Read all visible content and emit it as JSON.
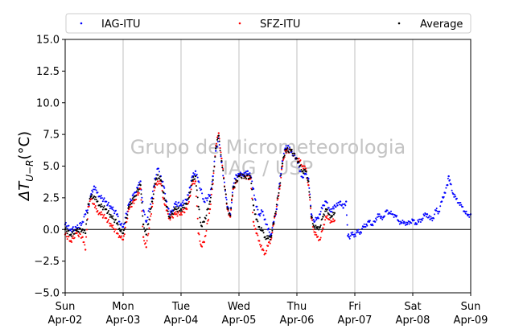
{
  "chart_data": {
    "type": "scatter",
    "ylabel": "ΔT_{U−R}(°C)",
    "ylabel_main": "ΔT",
    "ylabel_sub": "U−R",
    "ylabel_tail": "(°C)",
    "ylim": [
      -5,
      15
    ],
    "xlim": [
      0,
      7
    ],
    "y_ticks": [
      -5,
      -2.5,
      0,
      2.5,
      5,
      7.5,
      10,
      12.5,
      15
    ],
    "y_tick_labels": [
      "−5.0",
      "−2.5",
      "0.0",
      "2.5",
      "5.0",
      "7.5",
      "10.0",
      "12.5",
      "15.0"
    ],
    "x_ticks": [
      0,
      1,
      2,
      3,
      4,
      5,
      6,
      7
    ],
    "x_tick_labels": [
      [
        "Sun",
        "Apr-02"
      ],
      [
        "Mon",
        "Apr-03"
      ],
      [
        "Tue",
        "Apr-04"
      ],
      [
        "Wed",
        "Apr-05"
      ],
      [
        "Thu",
        "Apr-06"
      ],
      [
        "Fri",
        "Apr-07"
      ],
      [
        "Sat",
        "Apr-08"
      ],
      [
        "Sun",
        "Apr-09"
      ]
    ],
    "grid": "vertical",
    "legend_placement": "top, above plot",
    "reference_line_y": 0,
    "watermark": [
      "Grupo de Micrometeorologia",
      "IAG / USP"
    ],
    "series": [
      {
        "name": "IAG-ITU",
        "color": "#0000ff",
        "points": [
          [
            0.0,
            0.4
          ],
          [
            0.1,
            0.0
          ],
          [
            0.2,
            0.1
          ],
          [
            0.3,
            0.6
          ],
          [
            0.35,
            1.2
          ],
          [
            0.4,
            1.8
          ],
          [
            0.45,
            2.8
          ],
          [
            0.5,
            3.4
          ],
          [
            0.55,
            2.9
          ],
          [
            0.6,
            2.6
          ],
          [
            0.7,
            2.2
          ],
          [
            0.8,
            1.7
          ],
          [
            0.9,
            1.2
          ],
          [
            0.95,
            0.4
          ],
          [
            1.0,
            0.2
          ],
          [
            1.1,
            2.0
          ],
          [
            1.2,
            2.9
          ],
          [
            1.25,
            3.3
          ],
          [
            1.3,
            3.8
          ],
          [
            1.35,
            1.5
          ],
          [
            1.4,
            0.6
          ],
          [
            1.5,
            2.5
          ],
          [
            1.55,
            4.0
          ],
          [
            1.6,
            4.8
          ],
          [
            1.65,
            4.2
          ],
          [
            1.7,
            3.4
          ],
          [
            1.75,
            2.2
          ],
          [
            1.8,
            1.2
          ],
          [
            1.85,
            1.5
          ],
          [
            1.9,
            2.0
          ],
          [
            2.0,
            2.0
          ],
          [
            2.1,
            2.3
          ],
          [
            2.15,
            3.3
          ],
          [
            2.2,
            4.2
          ],
          [
            2.25,
            4.6
          ],
          [
            2.3,
            3.8
          ],
          [
            2.4,
            2.2
          ],
          [
            2.5,
            2.7
          ],
          [
            2.55,
            4.2
          ],
          [
            2.6,
            6.2
          ],
          [
            2.65,
            7.2
          ],
          [
            2.7,
            5.3
          ],
          [
            2.8,
            1.8
          ],
          [
            2.85,
            1.2
          ],
          [
            2.9,
            3.4
          ],
          [
            2.95,
            4.3
          ],
          [
            3.0,
            4.3
          ],
          [
            3.05,
            4.4
          ],
          [
            3.1,
            4.3
          ],
          [
            3.15,
            4.6
          ],
          [
            3.2,
            4.2
          ],
          [
            3.25,
            3.2
          ],
          [
            3.3,
            1.8
          ],
          [
            3.35,
            1.2
          ],
          [
            3.4,
            1.4
          ],
          [
            3.45,
            0.8
          ],
          [
            3.5,
            0.0
          ],
          [
            3.55,
            -0.4
          ],
          [
            3.6,
            0.6
          ],
          [
            3.65,
            1.6
          ],
          [
            3.7,
            3.6
          ],
          [
            3.75,
            5.4
          ],
          [
            3.8,
            6.4
          ],
          [
            3.85,
            6.6
          ],
          [
            3.9,
            6.1
          ],
          [
            4.0,
            5.6
          ],
          [
            4.05,
            4.6
          ],
          [
            4.1,
            4.1
          ],
          [
            4.15,
            4.4
          ],
          [
            4.2,
            4.0
          ],
          [
            4.25,
            1.2
          ],
          [
            4.3,
            0.6
          ],
          [
            4.35,
            0.9
          ],
          [
            4.4,
            1.2
          ],
          [
            4.45,
            1.9
          ],
          [
            4.5,
            2.2
          ],
          [
            4.55,
            1.7
          ],
          [
            4.6,
            1.4
          ],
          [
            4.65,
            1.9
          ],
          [
            4.7,
            1.9
          ],
          [
            4.75,
            2.2
          ],
          [
            4.8,
            1.7
          ],
          [
            4.85,
            2.2
          ],
          [
            4.88,
            -0.5
          ],
          [
            4.9,
            -0.6
          ],
          [
            4.95,
            -0.4
          ],
          [
            5.0,
            -0.4
          ],
          [
            5.05,
            -0.2
          ],
          [
            5.1,
            -0.2
          ],
          [
            5.15,
            0.2
          ],
          [
            5.2,
            0.4
          ],
          [
            5.25,
            0.6
          ],
          [
            5.3,
            0.4
          ],
          [
            5.35,
            0.6
          ],
          [
            5.4,
            1.2
          ],
          [
            5.45,
            0.9
          ],
          [
            5.5,
            1.0
          ],
          [
            5.55,
            1.5
          ],
          [
            5.6,
            1.3
          ],
          [
            5.65,
            1.2
          ],
          [
            5.7,
            1.1
          ],
          [
            5.75,
            0.7
          ],
          [
            5.8,
            0.5
          ],
          [
            5.85,
            0.6
          ],
          [
            5.9,
            0.4
          ],
          [
            5.95,
            0.6
          ],
          [
            6.0,
            0.7
          ],
          [
            6.05,
            0.5
          ],
          [
            6.1,
            0.6
          ],
          [
            6.15,
            0.8
          ],
          [
            6.2,
            1.1
          ],
          [
            6.25,
            1.2
          ],
          [
            6.3,
            0.8
          ],
          [
            6.35,
            0.9
          ],
          [
            6.4,
            1.5
          ],
          [
            6.45,
            1.4
          ],
          [
            6.5,
            2.2
          ],
          [
            6.55,
            2.9
          ],
          [
            6.6,
            3.5
          ],
          [
            6.62,
            4.2
          ],
          [
            6.65,
            3.6
          ],
          [
            6.7,
            2.8
          ],
          [
            6.75,
            2.4
          ],
          [
            6.8,
            2.1
          ],
          [
            6.85,
            1.8
          ],
          [
            6.9,
            1.4
          ],
          [
            6.95,
            1.1
          ],
          [
            7.0,
            1.2
          ]
        ]
      },
      {
        "name": "SFZ-ITU",
        "color": "#ff0000",
        "points": [
          [
            0.0,
            -0.4
          ],
          [
            0.1,
            -0.9
          ],
          [
            0.2,
            -0.3
          ],
          [
            0.3,
            -0.6
          ],
          [
            0.35,
            -1.6
          ],
          [
            0.4,
            1.8
          ],
          [
            0.45,
            2.4
          ],
          [
            0.5,
            2.0
          ],
          [
            0.55,
            1.4
          ],
          [
            0.6,
            1.3
          ],
          [
            0.7,
            0.9
          ],
          [
            0.8,
            0.3
          ],
          [
            0.9,
            -0.3
          ],
          [
            0.95,
            -0.6
          ],
          [
            1.0,
            -0.8
          ],
          [
            1.1,
            1.6
          ],
          [
            1.2,
            2.3
          ],
          [
            1.3,
            3.2
          ],
          [
            1.35,
            -0.6
          ],
          [
            1.4,
            -1.4
          ],
          [
            1.5,
            1.8
          ],
          [
            1.55,
            3.3
          ],
          [
            1.6,
            3.8
          ],
          [
            1.65,
            3.6
          ],
          [
            1.7,
            2.4
          ],
          [
            1.75,
            1.5
          ],
          [
            1.8,
            0.9
          ],
          [
            1.9,
            1.2
          ],
          [
            2.0,
            1.3
          ],
          [
            2.1,
            1.6
          ],
          [
            2.15,
            2.6
          ],
          [
            2.2,
            3.6
          ],
          [
            2.25,
            3.8
          ],
          [
            2.3,
            -0.3
          ],
          [
            2.35,
            -1.3
          ],
          [
            2.4,
            -1.0
          ],
          [
            2.5,
            1.6
          ],
          [
            2.55,
            3.6
          ],
          [
            2.6,
            6.6
          ],
          [
            2.65,
            7.6
          ],
          [
            2.7,
            5.6
          ],
          [
            2.8,
            1.6
          ],
          [
            2.85,
            1.0
          ],
          [
            2.9,
            3.2
          ],
          [
            3.0,
            4.2
          ],
          [
            3.1,
            4.2
          ],
          [
            3.2,
            4.0
          ],
          [
            3.25,
            0.6
          ],
          [
            3.3,
            -0.3
          ],
          [
            3.35,
            -0.9
          ],
          [
            3.4,
            -1.6
          ],
          [
            3.45,
            -1.9
          ],
          [
            3.5,
            -1.3
          ],
          [
            3.55,
            -0.8
          ],
          [
            3.6,
            0.4
          ],
          [
            3.7,
            3.2
          ],
          [
            3.75,
            5.0
          ],
          [
            3.8,
            6.2
          ],
          [
            3.9,
            6.2
          ],
          [
            4.0,
            5.6
          ],
          [
            4.05,
            5.4
          ],
          [
            4.1,
            5.0
          ],
          [
            4.15,
            4.8
          ],
          [
            4.2,
            3.5
          ],
          [
            4.25,
            0.9
          ],
          [
            4.3,
            -0.2
          ],
          [
            4.35,
            -0.6
          ],
          [
            4.4,
            -0.8
          ],
          [
            4.45,
            0.1
          ],
          [
            4.5,
            1.0
          ],
          [
            4.55,
            0.8
          ],
          [
            4.6,
            0.6
          ],
          [
            4.65,
            0.7
          ]
        ]
      },
      {
        "name": "Average",
        "color": "#000000",
        "points": [
          [
            0.0,
            0.0
          ],
          [
            0.1,
            -0.4
          ],
          [
            0.2,
            -0.1
          ],
          [
            0.3,
            0.0
          ],
          [
            0.35,
            -0.3
          ],
          [
            0.4,
            2.0
          ],
          [
            0.45,
            2.6
          ],
          [
            0.5,
            2.6
          ],
          [
            0.55,
            2.2
          ],
          [
            0.6,
            1.9
          ],
          [
            0.7,
            1.6
          ],
          [
            0.8,
            1.0
          ],
          [
            0.9,
            0.5
          ],
          [
            0.95,
            -0.1
          ],
          [
            1.0,
            -0.3
          ],
          [
            1.1,
            1.8
          ],
          [
            1.2,
            2.6
          ],
          [
            1.3,
            3.5
          ],
          [
            1.35,
            0.4
          ],
          [
            1.4,
            -0.4
          ],
          [
            1.5,
            2.2
          ],
          [
            1.55,
            3.6
          ],
          [
            1.6,
            4.3
          ],
          [
            1.65,
            3.9
          ],
          [
            1.7,
            2.9
          ],
          [
            1.75,
            1.8
          ],
          [
            1.8,
            1.0
          ],
          [
            1.9,
            1.6
          ],
          [
            2.0,
            1.6
          ],
          [
            2.1,
            2.0
          ],
          [
            2.15,
            2.9
          ],
          [
            2.2,
            3.9
          ],
          [
            2.25,
            4.2
          ],
          [
            2.3,
            1.8
          ],
          [
            2.35,
            0.3
          ],
          [
            2.4,
            0.6
          ],
          [
            2.5,
            2.2
          ],
          [
            2.55,
            3.9
          ],
          [
            2.6,
            6.4
          ],
          [
            2.65,
            7.4
          ],
          [
            2.7,
            5.4
          ],
          [
            2.8,
            1.7
          ],
          [
            2.85,
            1.1
          ],
          [
            2.9,
            3.3
          ],
          [
            3.0,
            4.2
          ],
          [
            3.1,
            4.2
          ],
          [
            3.2,
            4.1
          ],
          [
            3.25,
            1.9
          ],
          [
            3.3,
            0.8
          ],
          [
            3.35,
            0.2
          ],
          [
            3.4,
            -0.1
          ],
          [
            3.45,
            -0.6
          ],
          [
            3.5,
            -0.7
          ],
          [
            3.55,
            -0.6
          ],
          [
            3.6,
            0.5
          ],
          [
            3.7,
            3.4
          ],
          [
            3.75,
            5.2
          ],
          [
            3.8,
            6.3
          ],
          [
            3.9,
            6.2
          ],
          [
            4.0,
            5.6
          ],
          [
            4.05,
            5.0
          ],
          [
            4.1,
            4.6
          ],
          [
            4.15,
            4.6
          ],
          [
            4.2,
            3.8
          ],
          [
            4.25,
            1.0
          ],
          [
            4.3,
            0.2
          ],
          [
            4.35,
            0.1
          ],
          [
            4.4,
            0.2
          ],
          [
            4.45,
            1.0
          ],
          [
            4.5,
            1.6
          ],
          [
            4.55,
            1.2
          ],
          [
            4.6,
            1.0
          ],
          [
            4.65,
            1.3
          ]
        ]
      }
    ]
  }
}
